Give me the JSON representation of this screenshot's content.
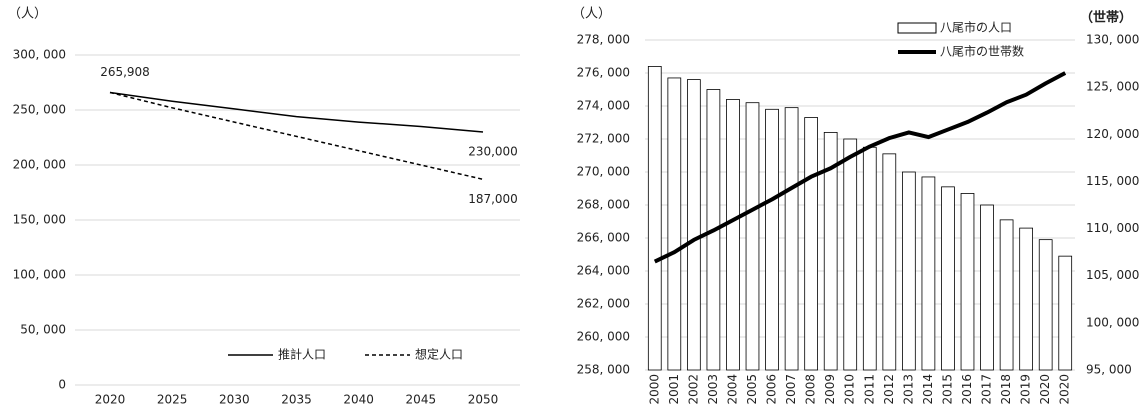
{
  "chart_data": [
    {
      "type": "line",
      "y_label": "（人）",
      "x": [
        2020,
        2025,
        2030,
        2035,
        2040,
        2045,
        2050
      ],
      "xlim": [
        2020,
        2050
      ],
      "xticks": [
        2020,
        2025,
        2030,
        2035,
        2040,
        2045,
        2050
      ],
      "ylim": [
        0,
        300000
      ],
      "yticks": [
        {
          "value": 0,
          "label": "0"
        },
        {
          "value": 50000,
          "label": "50, 000"
        },
        {
          "value": 100000,
          "label": "100, 000"
        },
        {
          "value": 150000,
          "label": "150, 000"
        },
        {
          "value": 200000,
          "label": "200, 000"
        },
        {
          "value": 250000,
          "label": "250, 000"
        },
        {
          "value": 300000,
          "label": "300, 000"
        }
      ],
      "grid": true,
      "legend": "bottom-right",
      "series": [
        {
          "name": "推計人口",
          "color": "#000000",
          "dash": "solid",
          "values": [
            265908,
            258000,
            251000,
            244000,
            239000,
            235000,
            230000
          ],
          "value_labels": [
            "265,908",
            null,
            null,
            null,
            null,
            null,
            "230,000"
          ]
        },
        {
          "name": "想定人口",
          "color": "#000000",
          "dash": "dashed",
          "values": [
            265908,
            252000,
            239000,
            226000,
            213000,
            200000,
            187000
          ],
          "value_labels": [
            null,
            null,
            null,
            null,
            null,
            null,
            "187,000"
          ]
        }
      ]
    },
    {
      "type": "combo",
      "y_label": "（人）",
      "y2_label": "（世帯）",
      "categories": [
        "2000",
        "2001",
        "2002",
        "2003",
        "2004",
        "2005",
        "2006",
        "2007",
        "2008",
        "2009",
        "2010",
        "2011",
        "2012",
        "2013",
        "2014",
        "2015",
        "2016",
        "2017",
        "2018",
        "2019",
        "2020",
        "2020"
      ],
      "ylim": [
        258000,
        278000
      ],
      "yticks": [
        {
          "value": 258000,
          "label": "258, 000"
        },
        {
          "value": 260000,
          "label": "260, 000"
        },
        {
          "value": 262000,
          "label": "262, 000"
        },
        {
          "value": 264000,
          "label": "264, 000"
        },
        {
          "value": 266000,
          "label": "266, 000"
        },
        {
          "value": 268000,
          "label": "268, 000"
        },
        {
          "value": 270000,
          "label": "270, 000"
        },
        {
          "value": 272000,
          "label": "272, 000"
        },
        {
          "value": 274000,
          "label": "274, 000"
        },
        {
          "value": 276000,
          "label": "276, 000"
        },
        {
          "value": 278000,
          "label": "278, 000"
        }
      ],
      "y2lim": [
        95000,
        130000
      ],
      "y2ticks": [
        {
          "value": 95000,
          "label": "95, 000"
        },
        {
          "value": 100000,
          "label": "100, 000"
        },
        {
          "value": 105000,
          "label": "105, 000"
        },
        {
          "value": 110000,
          "label": "110, 000"
        },
        {
          "value": 115000,
          "label": "115, 000"
        },
        {
          "value": 120000,
          "label": "120, 000"
        },
        {
          "value": 125000,
          "label": "125, 000"
        },
        {
          "value": 130000,
          "label": "130, 000"
        }
      ],
      "grid": true,
      "legend": "top-right",
      "series": [
        {
          "name": "八尾市の人口",
          "type": "bar",
          "color": "#ffffff",
          "axis": "y",
          "values": [
            276400,
            275700,
            275600,
            275000,
            274400,
            274200,
            273800,
            273900,
            273300,
            272400,
            272000,
            271500,
            271100,
            270000,
            269700,
            269100,
            268700,
            268000,
            267100,
            266600,
            265900,
            264900
          ]
        },
        {
          "name": "八尾市の世帯数",
          "type": "line",
          "color": "#000000",
          "axis": "y2",
          "values": [
            106500,
            107500,
            108800,
            109800,
            110900,
            112000,
            113100,
            114300,
            115500,
            116400,
            117600,
            118700,
            119600,
            120200,
            119700,
            120500,
            121300,
            122300,
            123400,
            124200,
            125400,
            126500
          ]
        }
      ]
    }
  ]
}
